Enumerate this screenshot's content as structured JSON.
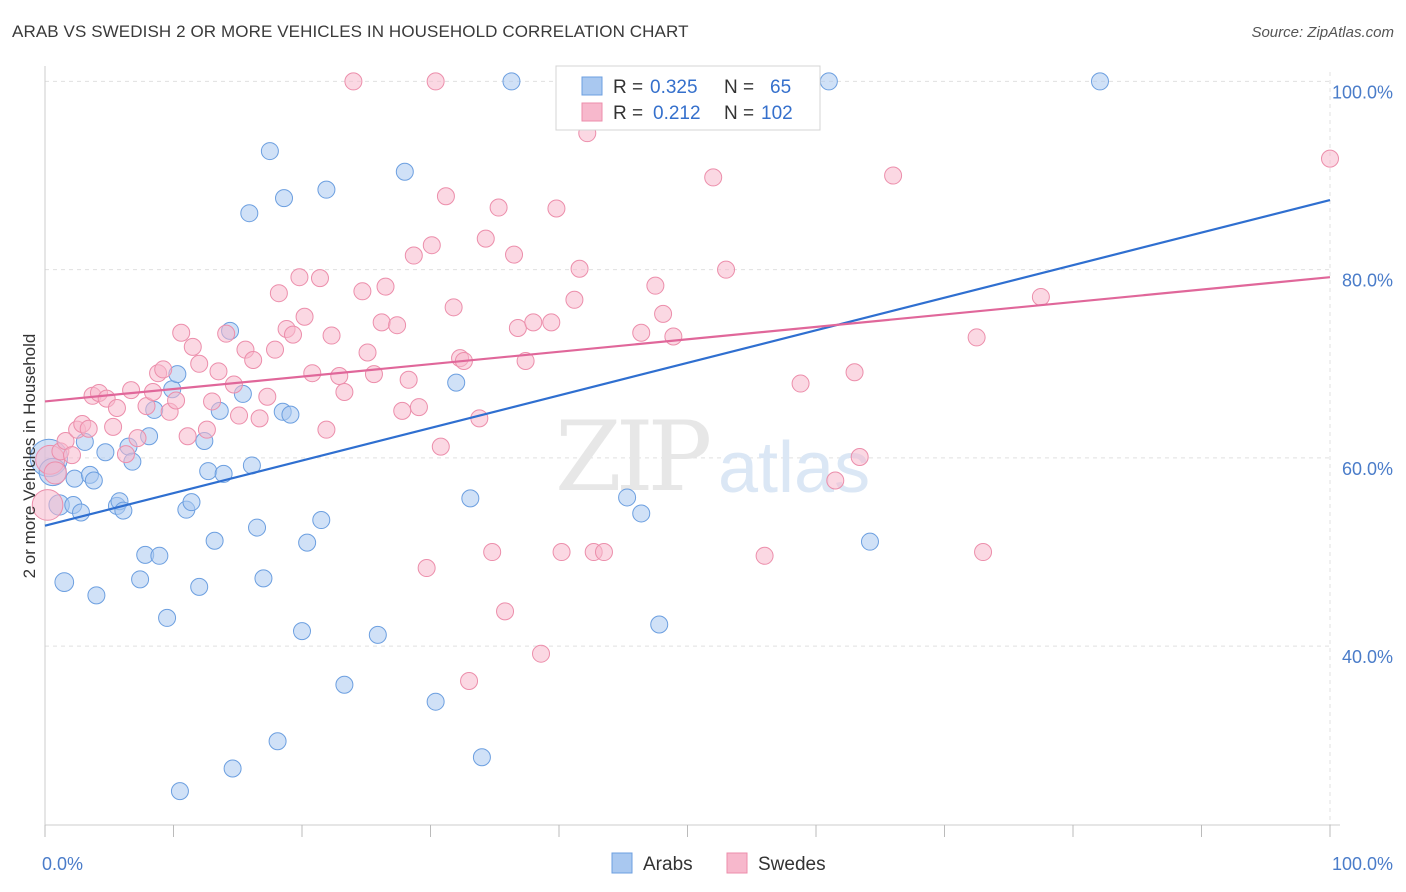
{
  "title": "ARAB VS SWEDISH 2 OR MORE VEHICLES IN HOUSEHOLD CORRELATION CHART",
  "source": "Source: ZipAtlas.com",
  "watermark": {
    "zip": "ZIP",
    "atlas": "atlas"
  },
  "legend_box": {
    "rows": [
      {
        "r_label": "R =",
        "r_value": "0.325",
        "n_label": "N =",
        "n_value": "65"
      },
      {
        "r_label": "R =",
        "r_value": "0.212",
        "n_label": "N =",
        "n_value": "102"
      }
    ]
  },
  "bottom_legend": [
    "Arabs",
    "Swedes"
  ],
  "colors": {
    "arabs_fill": "#a9c8f0",
    "arabs_stroke": "#6c9fe0",
    "arabs_line": "#2f6fd0",
    "swedes_fill": "#f7b8cc",
    "swedes_stroke": "#ec8eab",
    "swedes_line": "#e0679a",
    "grid": "#e0e0e0",
    "tick_label": "#4a7cc9"
  },
  "chart_data": {
    "type": "scatter",
    "title": "ARAB VS SWEDISH 2 OR MORE VEHICLES IN HOUSEHOLD CORRELATION CHART",
    "xlabel": "",
    "ylabel": "2 or more Vehicles in Household",
    "xlim": [
      0,
      100
    ],
    "ylim": [
      21,
      101
    ],
    "x_ticks": [
      "0.0%",
      "100.0%"
    ],
    "y_ticks": [
      {
        "value": 40,
        "label": "40.0%"
      },
      {
        "value": 60,
        "label": "60.0%"
      },
      {
        "value": 80,
        "label": "80.0%"
      },
      {
        "value": 100,
        "label": "100.0%"
      }
    ],
    "grid": true,
    "legend": "top-center",
    "series": [
      {
        "name": "Arabs",
        "r": 0.325,
        "n": 65,
        "trend": {
          "x": [
            0,
            100
          ],
          "y": [
            52.8,
            87.4
          ]
        },
        "points": [
          {
            "x": 0.3,
            "y": 60.0,
            "s": 2.2
          },
          {
            "x": 0.6,
            "y": 58.5,
            "s": 1.6
          },
          {
            "x": 1.1,
            "y": 55.0,
            "s": 1.2
          },
          {
            "x": 1.5,
            "y": 46.8,
            "s": 1.1
          },
          {
            "x": 2.2,
            "y": 55.0
          },
          {
            "x": 2.3,
            "y": 57.8
          },
          {
            "x": 2.8,
            "y": 54.2
          },
          {
            "x": 3.1,
            "y": 61.7
          },
          {
            "x": 3.5,
            "y": 58.2
          },
          {
            "x": 3.8,
            "y": 57.6
          },
          {
            "x": 4.0,
            "y": 45.4
          },
          {
            "x": 4.7,
            "y": 60.6
          },
          {
            "x": 5.6,
            "y": 54.9
          },
          {
            "x": 5.8,
            "y": 55.4
          },
          {
            "x": 6.1,
            "y": 54.4
          },
          {
            "x": 6.5,
            "y": 61.2
          },
          {
            "x": 6.8,
            "y": 59.6
          },
          {
            "x": 7.4,
            "y": 47.1
          },
          {
            "x": 7.8,
            "y": 49.7
          },
          {
            "x": 8.1,
            "y": 62.3
          },
          {
            "x": 8.5,
            "y": 65.1
          },
          {
            "x": 8.9,
            "y": 49.6
          },
          {
            "x": 9.5,
            "y": 43.0
          },
          {
            "x": 9.9,
            "y": 67.3
          },
          {
            "x": 10.3,
            "y": 68.9
          },
          {
            "x": 10.5,
            "y": 24.6
          },
          {
            "x": 11.0,
            "y": 54.5
          },
          {
            "x": 11.4,
            "y": 55.3
          },
          {
            "x": 12.0,
            "y": 46.3
          },
          {
            "x": 12.4,
            "y": 61.8
          },
          {
            "x": 12.7,
            "y": 58.6
          },
          {
            "x": 13.2,
            "y": 51.2
          },
          {
            "x": 13.6,
            "y": 65.0
          },
          {
            "x": 13.9,
            "y": 58.3
          },
          {
            "x": 14.4,
            "y": 73.5
          },
          {
            "x": 14.6,
            "y": 27.0
          },
          {
            "x": 15.4,
            "y": 66.8
          },
          {
            "x": 15.9,
            "y": 86.0
          },
          {
            "x": 16.1,
            "y": 59.2
          },
          {
            "x": 16.5,
            "y": 52.6
          },
          {
            "x": 17.0,
            "y": 47.2
          },
          {
            "x": 17.5,
            "y": 92.6
          },
          {
            "x": 18.1,
            "y": 29.9
          },
          {
            "x": 18.6,
            "y": 87.6
          },
          {
            "x": 18.5,
            "y": 64.9
          },
          {
            "x": 19.1,
            "y": 64.6
          },
          {
            "x": 20.0,
            "y": 41.6
          },
          {
            "x": 20.4,
            "y": 51.0
          },
          {
            "x": 21.5,
            "y": 53.4
          },
          {
            "x": 21.9,
            "y": 88.5
          },
          {
            "x": 23.3,
            "y": 35.9
          },
          {
            "x": 25.9,
            "y": 41.2
          },
          {
            "x": 28.0,
            "y": 90.4
          },
          {
            "x": 30.4,
            "y": 34.1
          },
          {
            "x": 32.0,
            "y": 68.0
          },
          {
            "x": 33.1,
            "y": 55.7
          },
          {
            "x": 34.0,
            "y": 28.2
          },
          {
            "x": 36.3,
            "y": 100.0
          },
          {
            "x": 45.3,
            "y": 55.8
          },
          {
            "x": 46.4,
            "y": 54.1
          },
          {
            "x": 47.8,
            "y": 42.3
          },
          {
            "x": 47.0,
            "y": 100.0
          },
          {
            "x": 61.0,
            "y": 100.0
          },
          {
            "x": 64.2,
            "y": 51.1
          },
          {
            "x": 82.1,
            "y": 100.0
          }
        ]
      },
      {
        "name": "Swedes",
        "r": 0.212,
        "n": 102,
        "trend": {
          "x": [
            0,
            100
          ],
          "y": [
            66.0,
            79.2
          ]
        },
        "points": [
          {
            "x": 0.2,
            "y": 55.0,
            "s": 1.8
          },
          {
            "x": 0.4,
            "y": 59.8,
            "s": 1.7
          },
          {
            "x": 0.8,
            "y": 58.4,
            "s": 1.3
          },
          {
            "x": 1.2,
            "y": 60.7
          },
          {
            "x": 1.6,
            "y": 61.8
          },
          {
            "x": 2.1,
            "y": 60.3
          },
          {
            "x": 2.5,
            "y": 63.0
          },
          {
            "x": 2.9,
            "y": 63.6
          },
          {
            "x": 3.4,
            "y": 63.1
          },
          {
            "x": 3.7,
            "y": 66.6
          },
          {
            "x": 4.2,
            "y": 66.9
          },
          {
            "x": 4.8,
            "y": 66.3
          },
          {
            "x": 5.3,
            "y": 63.3
          },
          {
            "x": 5.6,
            "y": 65.3
          },
          {
            "x": 6.3,
            "y": 60.4
          },
          {
            "x": 6.7,
            "y": 67.2
          },
          {
            "x": 7.2,
            "y": 62.1
          },
          {
            "x": 7.9,
            "y": 65.5
          },
          {
            "x": 8.4,
            "y": 67.0
          },
          {
            "x": 8.8,
            "y": 69.0
          },
          {
            "x": 9.2,
            "y": 69.4
          },
          {
            "x": 9.7,
            "y": 64.9
          },
          {
            "x": 10.2,
            "y": 66.1
          },
          {
            "x": 10.6,
            "y": 73.3
          },
          {
            "x": 11.1,
            "y": 62.3
          },
          {
            "x": 11.5,
            "y": 71.8
          },
          {
            "x": 12.0,
            "y": 70.0
          },
          {
            "x": 12.6,
            "y": 63.0
          },
          {
            "x": 13.0,
            "y": 66.0
          },
          {
            "x": 13.5,
            "y": 69.2
          },
          {
            "x": 14.1,
            "y": 73.2
          },
          {
            "x": 14.7,
            "y": 67.8
          },
          {
            "x": 15.1,
            "y": 64.5
          },
          {
            "x": 15.6,
            "y": 71.5
          },
          {
            "x": 16.2,
            "y": 70.4
          },
          {
            "x": 16.7,
            "y": 64.2
          },
          {
            "x": 17.3,
            "y": 66.5
          },
          {
            "x": 17.9,
            "y": 71.5
          },
          {
            "x": 18.2,
            "y": 77.5
          },
          {
            "x": 18.8,
            "y": 73.7
          },
          {
            "x": 19.3,
            "y": 73.1
          },
          {
            "x": 19.8,
            "y": 79.2
          },
          {
            "x": 20.2,
            "y": 75.0
          },
          {
            "x": 20.8,
            "y": 69.0
          },
          {
            "x": 21.4,
            "y": 79.1
          },
          {
            "x": 21.9,
            "y": 63.0
          },
          {
            "x": 22.3,
            "y": 73.0
          },
          {
            "x": 22.9,
            "y": 68.7
          },
          {
            "x": 23.3,
            "y": 67.0
          },
          {
            "x": 24.0,
            "y": 100.0
          },
          {
            "x": 24.7,
            "y": 77.7
          },
          {
            "x": 25.1,
            "y": 71.2
          },
          {
            "x": 25.6,
            "y": 68.9
          },
          {
            "x": 26.2,
            "y": 74.4
          },
          {
            "x": 26.5,
            "y": 78.2
          },
          {
            "x": 27.4,
            "y": 74.1
          },
          {
            "x": 27.8,
            "y": 65.0
          },
          {
            "x": 28.3,
            "y": 68.3
          },
          {
            "x": 28.7,
            "y": 81.5
          },
          {
            "x": 29.1,
            "y": 65.4
          },
          {
            "x": 29.7,
            "y": 48.3
          },
          {
            "x": 30.1,
            "y": 82.6
          },
          {
            "x": 30.4,
            "y": 100.0
          },
          {
            "x": 30.8,
            "y": 61.2
          },
          {
            "x": 31.2,
            "y": 87.8
          },
          {
            "x": 31.8,
            "y": 76.0
          },
          {
            "x": 32.3,
            "y": 70.6
          },
          {
            "x": 32.6,
            "y": 70.3
          },
          {
            "x": 33.0,
            "y": 36.3
          },
          {
            "x": 33.8,
            "y": 64.2
          },
          {
            "x": 34.3,
            "y": 83.3
          },
          {
            "x": 34.8,
            "y": 50.0
          },
          {
            "x": 35.3,
            "y": 86.6
          },
          {
            "x": 35.8,
            "y": 43.7
          },
          {
            "x": 36.5,
            "y": 81.6
          },
          {
            "x": 36.8,
            "y": 73.8
          },
          {
            "x": 37.4,
            "y": 70.3
          },
          {
            "x": 38.0,
            "y": 74.4
          },
          {
            "x": 38.6,
            "y": 39.2
          },
          {
            "x": 39.4,
            "y": 74.4
          },
          {
            "x": 39.8,
            "y": 86.5
          },
          {
            "x": 40.2,
            "y": 50.0
          },
          {
            "x": 41.2,
            "y": 76.8
          },
          {
            "x": 41.6,
            "y": 80.1
          },
          {
            "x": 42.2,
            "y": 94.5
          },
          {
            "x": 42.7,
            "y": 50.0
          },
          {
            "x": 43.5,
            "y": 50.0
          },
          {
            "x": 44.1,
            "y": 100.0
          },
          {
            "x": 46.4,
            "y": 73.3
          },
          {
            "x": 47.5,
            "y": 78.3
          },
          {
            "x": 48.1,
            "y": 75.3
          },
          {
            "x": 48.9,
            "y": 72.9
          },
          {
            "x": 52.0,
            "y": 89.8
          },
          {
            "x": 53.0,
            "y": 80.0
          },
          {
            "x": 56.0,
            "y": 49.6
          },
          {
            "x": 58.8,
            "y": 67.9
          },
          {
            "x": 61.5,
            "y": 57.6
          },
          {
            "x": 63.0,
            "y": 69.1
          },
          {
            "x": 63.4,
            "y": 60.1
          },
          {
            "x": 66.0,
            "y": 90.0
          },
          {
            "x": 72.5,
            "y": 72.8
          },
          {
            "x": 73.0,
            "y": 50.0
          },
          {
            "x": 77.5,
            "y": 77.1
          },
          {
            "x": 100.0,
            "y": 91.8
          }
        ]
      }
    ]
  }
}
